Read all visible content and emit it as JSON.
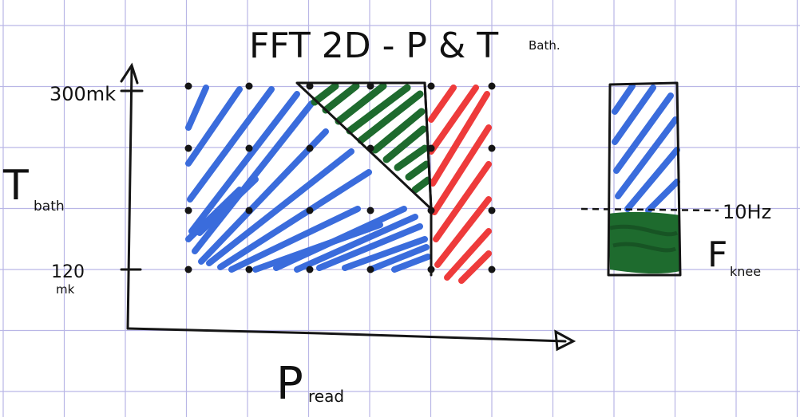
{
  "title": "FFT 2D - P & T",
  "title_sub": "Bath.",
  "y_axis": {
    "label_main": "T",
    "label_sub": "bath",
    "tick_top": "300mk",
    "tick_bottom_1": "120",
    "tick_bottom_2": "mk"
  },
  "x_axis": {
    "label_main": "P",
    "label_sub": "read"
  },
  "side_panel": {
    "threshold_label": "10Hz",
    "label_main": "F",
    "label_sub": "knee"
  },
  "colors": {
    "paper": "#ffffff",
    "grid": "#b9b6e6",
    "ink": "#151515",
    "blue": "#3a6cdc",
    "green": "#1e6b2e",
    "red": "#ee3b3b"
  }
}
